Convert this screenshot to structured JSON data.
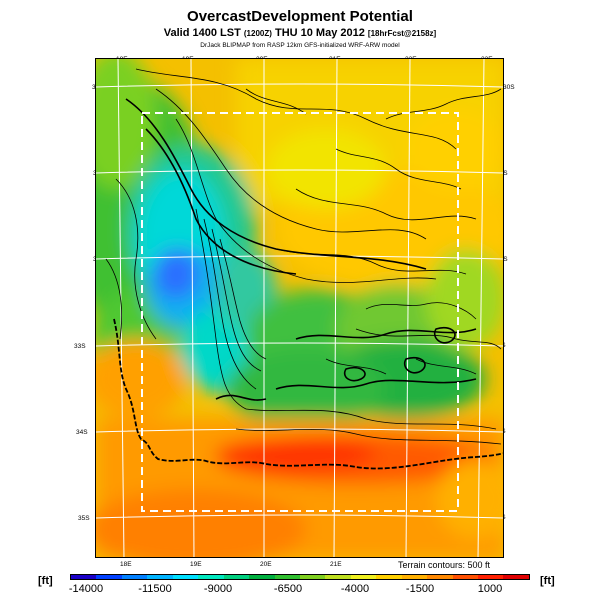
{
  "title": "OvercastDevelopment Potential",
  "subtitle_main": "Valid 1400 LST",
  "subtitle_utc": "(1200Z)",
  "subtitle_date": "THU 10 May 2012",
  "subtitle_fcst": "[18hrFcst@2158z]",
  "credit": "DrJack BLIPMAP from RASP 12km GFS-initialized WRF-ARW model",
  "terrain_note": "Terrain contours: 500 ft",
  "unit_left": "[ft]",
  "unit_right": "[ft]",
  "lon_top": [
    "18E",
    "19E",
    "20E",
    "21E",
    "22E",
    "23E"
  ],
  "lon_bottom": [
    "18E",
    "19E",
    "20E",
    "21E"
  ],
  "lat_left": [
    "30S",
    "31S",
    "32S",
    "33S",
    "34S",
    "35S"
  ],
  "lat_right": [
    "30S",
    "31S",
    "32S",
    "33S",
    "34S",
    "35S"
  ],
  "colorbar": {
    "colors": [
      "#1a00c8",
      "#0040ff",
      "#0080ff",
      "#00b4ff",
      "#00e0ff",
      "#00e8c0",
      "#00d080",
      "#00b040",
      "#30c030",
      "#80d020",
      "#c0e020",
      "#f0f020",
      "#ffd000",
      "#ffb000",
      "#ff8800",
      "#ff5000",
      "#ff2000",
      "#e00000"
    ],
    "ticks": [
      "-14000",
      "-11500",
      "-9000",
      "-6500",
      "-4000",
      "-1500",
      "1000"
    ]
  }
}
